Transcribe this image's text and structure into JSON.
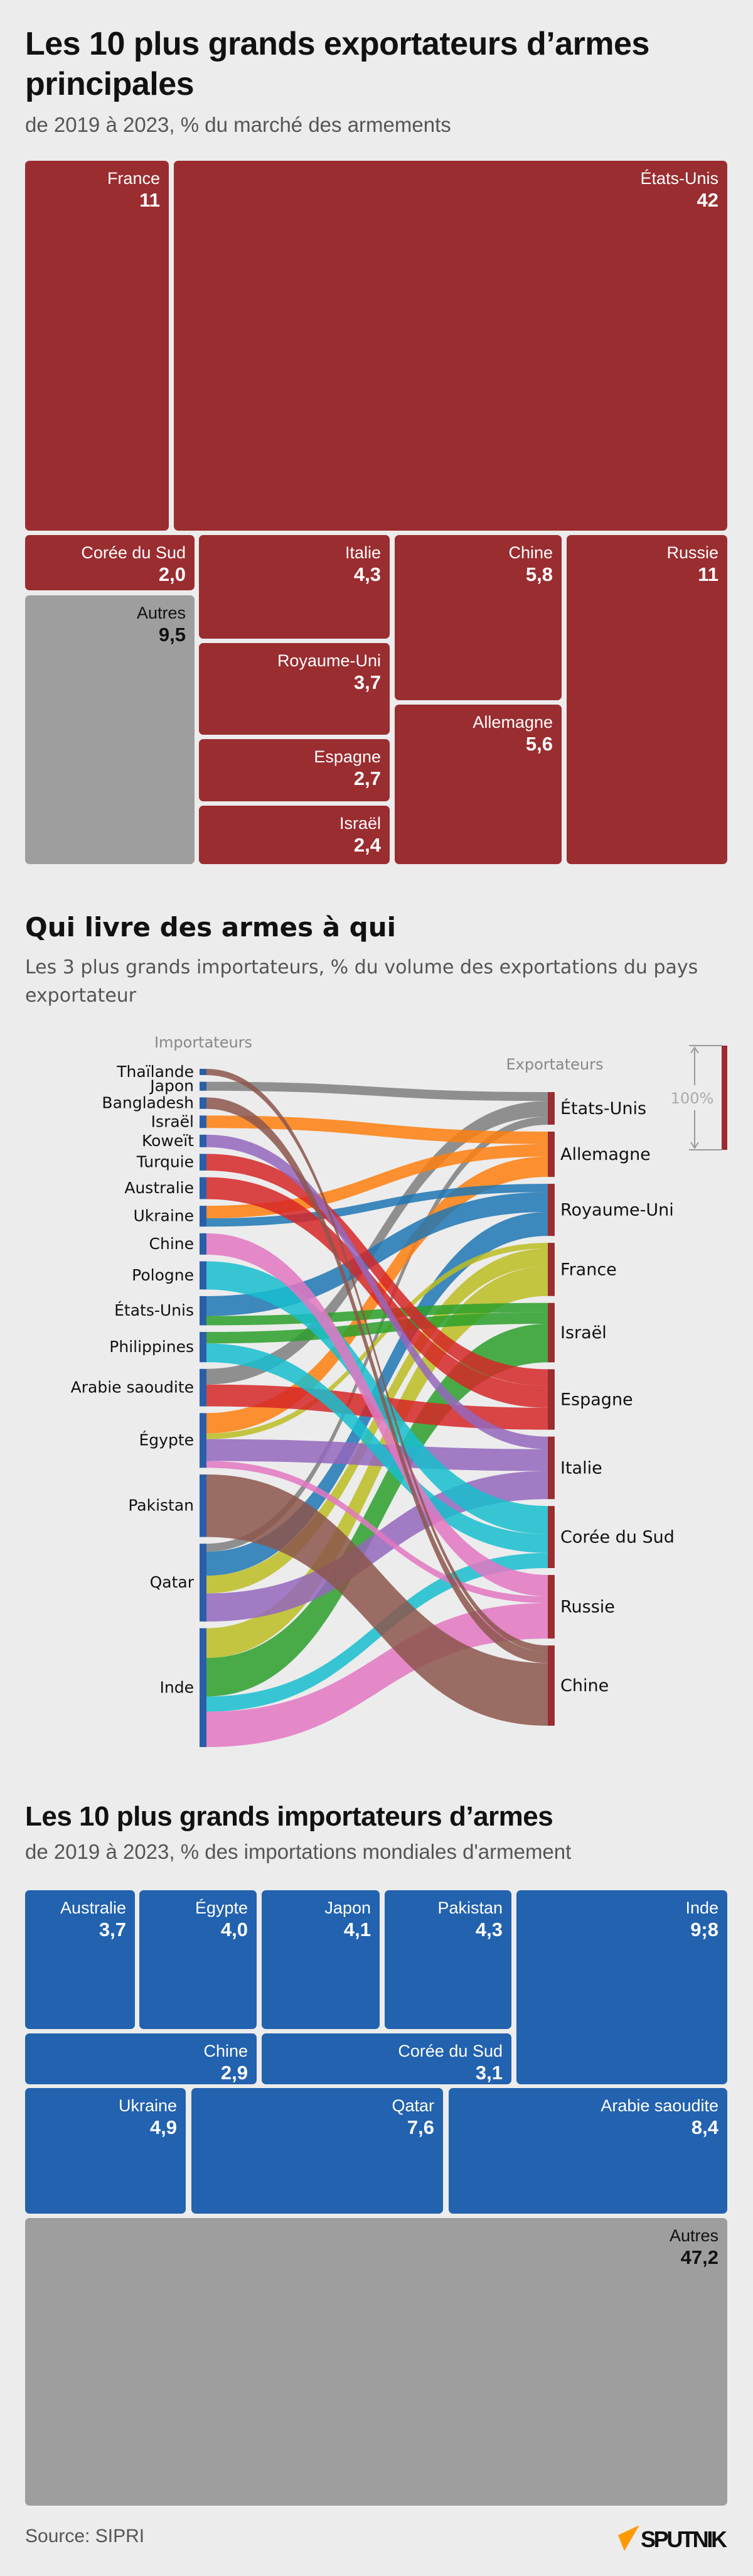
{
  "colors": {
    "exporter_red": "#9a2d30",
    "importer_blue": "#2262ae",
    "other_grey": "#9e9e9e",
    "background": "#ececec"
  },
  "section1": {
    "title": "Les 10 plus grands exportateurs d’armes principales",
    "subtitle": "de 2019 à 2023, % du marché des armements"
  },
  "section2": {
    "title": "Qui livre des armes à qui",
    "subtitle": "Les 3 plus grands importateurs, % du volume des exportations du pays exportateur",
    "importers_label": "Importateurs",
    "exporters_label": "Exportateurs",
    "scale_label": "100%"
  },
  "section3": {
    "title": "Les 10 plus grands importateurs d’armes",
    "subtitle": "de 2019 à 2023, % des importations mondiales d'armement"
  },
  "footer": {
    "source": "Source: SIPRI",
    "logo": "SPUTNIK"
  },
  "chart_data": [
    {
      "type": "treemap",
      "title": "Les 10 plus grands exportateurs d’armes principales",
      "items": [
        {
          "label": "France",
          "value": "11"
        },
        {
          "label": "États-Unis",
          "value": "42"
        },
        {
          "label": "Corée du Sud",
          "value": "2,0"
        },
        {
          "label": "Autres",
          "value": "9,5"
        },
        {
          "label": "Italie",
          "value": "4,3"
        },
        {
          "label": "Royaume-Uni",
          "value": "3,7"
        },
        {
          "label": "Espagne",
          "value": "2,7"
        },
        {
          "label": "Israël",
          "value": "2,4"
        },
        {
          "label": "Chine",
          "value": "5,8"
        },
        {
          "label": "Allemagne",
          "value": "5,6"
        },
        {
          "label": "Russie",
          "value": "11"
        }
      ]
    },
    {
      "type": "sankey",
      "title": "Qui livre des armes à qui",
      "importers": [
        "Thaïlande",
        "Japon",
        "Bangladesh",
        "Israël",
        "Koweït",
        "Turquie",
        "Australie",
        "Ukraine",
        "Chine",
        "Pologne",
        "États-Unis",
        "Philippines",
        "Arabie saoudite",
        "Égypte",
        "Pakistan",
        "Qatar",
        "Inde"
      ],
      "exporters": [
        {
          "name": "États-Unis",
          "color": "#7f7f7f"
        },
        {
          "name": "Allemagne",
          "color": "#ff7f0e"
        },
        {
          "name": "Royaume-Uni",
          "color": "#1f77b4"
        },
        {
          "name": "France",
          "color": "#bcbd22"
        },
        {
          "name": "Israël",
          "color": "#2ca02c"
        },
        {
          "name": "Espagne",
          "color": "#d62728"
        },
        {
          "name": "Italie",
          "color": "#9467bd"
        },
        {
          "name": "Corée du Sud",
          "color": "#17becf"
        },
        {
          "name": "Russie",
          "color": "#e377c2"
        },
        {
          "name": "Chine",
          "color": "#8c564b"
        }
      ],
      "flows": [
        {
          "exporter": "États-Unis",
          "importer": "Japon",
          "value": 8.6
        },
        {
          "exporter": "États-Unis",
          "importer": "Arabie saoudite",
          "value": 15
        },
        {
          "exporter": "États-Unis",
          "importer": "Qatar",
          "value": 7.7
        },
        {
          "exporter": "Allemagne",
          "importer": "Israël",
          "value": 12
        },
        {
          "exporter": "Allemagne",
          "importer": "Ukraine",
          "value": 12
        },
        {
          "exporter": "Allemagne",
          "importer": "Égypte",
          "value": 19.5
        },
        {
          "exporter": "Royaume-Uni",
          "importer": "Ukraine",
          "value": 8
        },
        {
          "exporter": "Royaume-Uni",
          "importer": "États-Unis",
          "value": 19
        },
        {
          "exporter": "Royaume-Uni",
          "importer": "Qatar",
          "value": 23
        },
        {
          "exporter": "France",
          "importer": "Égypte",
          "value": 5.5
        },
        {
          "exporter": "France",
          "importer": "Qatar",
          "value": 17
        },
        {
          "exporter": "France",
          "importer": "Inde",
          "value": 28.5
        },
        {
          "exporter": "Israël",
          "importer": "États-Unis",
          "value": 9
        },
        {
          "exporter": "Israël",
          "importer": "Philippines",
          "value": 11
        },
        {
          "exporter": "Israël",
          "importer": "Inde",
          "value": 37
        },
        {
          "exporter": "Espagne",
          "importer": "Turquie",
          "value": 16
        },
        {
          "exporter": "Espagne",
          "importer": "Australie",
          "value": 21
        },
        {
          "exporter": "Espagne",
          "importer": "Arabie saoudite",
          "value": 21
        },
        {
          "exporter": "Italie",
          "importer": "Koweït",
          "value": 12
        },
        {
          "exporter": "Italie",
          "importer": "Égypte",
          "value": 21
        },
        {
          "exporter": "Italie",
          "importer": "Qatar",
          "value": 27
        },
        {
          "exporter": "Corée du Sud",
          "importer": "Pologne",
          "value": 27
        },
        {
          "exporter": "Corée du Sud",
          "importer": "Philippines",
          "value": 18
        },
        {
          "exporter": "Corée du Sud",
          "importer": "Inde",
          "value": 14.5
        },
        {
          "exporter": "Russie",
          "importer": "Chine",
          "value": 20.5
        },
        {
          "exporter": "Russie",
          "importer": "Égypte",
          "value": 6.5
        },
        {
          "exporter": "Russie",
          "importer": "Inde",
          "value": 34
        },
        {
          "exporter": "Chine",
          "importer": "Thaïlande",
          "value": 6
        },
        {
          "exporter": "Chine",
          "importer": "Bangladesh",
          "value": 11
        },
        {
          "exporter": "Chine",
          "importer": "Pakistan",
          "value": 60
        }
      ]
    },
    {
      "type": "treemap",
      "title": "Les 10 plus grands importateurs d’armes",
      "items": [
        {
          "label": "Australie",
          "value": "3,7"
        },
        {
          "label": "Égypte",
          "value": "4,0"
        },
        {
          "label": "Japon",
          "value": "4,1"
        },
        {
          "label": "Pakistan",
          "value": "4,3"
        },
        {
          "label": "Inde",
          "value": "9;8"
        },
        {
          "label": "Chine",
          "value": "2,9"
        },
        {
          "label": "Corée du Sud",
          "value": "3,1"
        },
        {
          "label": "Ukraine",
          "value": "4,9"
        },
        {
          "label": "Qatar",
          "value": "7,6"
        },
        {
          "label": "Arabie saoudite",
          "value": "8,4"
        },
        {
          "label": "Autres",
          "value": "47,2"
        }
      ]
    }
  ]
}
